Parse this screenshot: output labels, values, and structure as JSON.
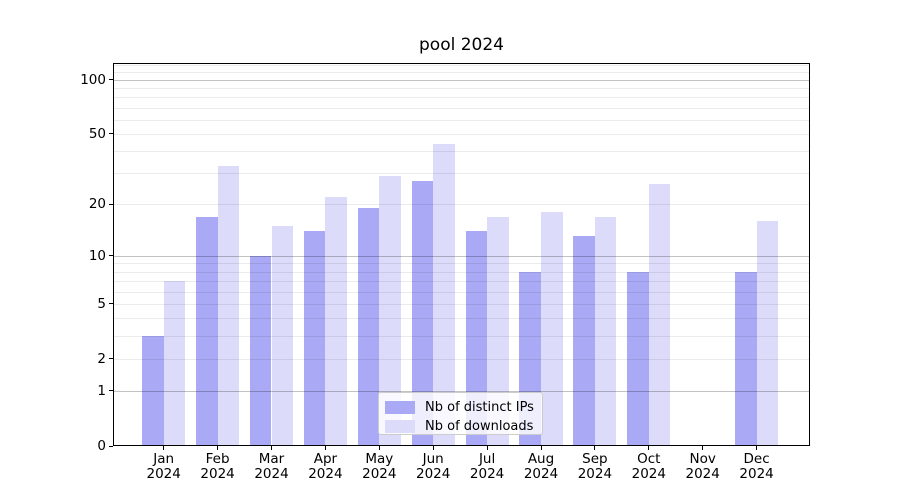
{
  "title": "pool 2024",
  "chart_data": {
    "type": "bar",
    "title": "pool 2024",
    "categories": [
      "Jan",
      "Feb",
      "Mar",
      "Apr",
      "May",
      "Jun",
      "Jul",
      "Aug",
      "Sep",
      "Oct",
      "Nov",
      "Dec"
    ],
    "category_year": "2024",
    "series": [
      {
        "name": "Nb of distinct IPs",
        "color": "#a9a9f5",
        "values": [
          3,
          17,
          10,
          14,
          19,
          27,
          14,
          8,
          13,
          8,
          0,
          8
        ]
      },
      {
        "name": "Nb of downloads",
        "color": "#dcdcfa",
        "values": [
          7,
          33,
          15,
          22,
          29,
          44,
          17,
          18,
          17,
          26,
          0,
          16
        ]
      }
    ],
    "y_scale": "log10(1+v)",
    "ylim": [
      0,
      124
    ],
    "y_ticks": [
      0,
      1,
      2,
      5,
      10,
      20,
      50,
      100
    ],
    "major_gridlines": [
      1,
      10,
      100
    ],
    "minor_gridlines": [
      2,
      3,
      4,
      5,
      6,
      7,
      8,
      9,
      20,
      30,
      40,
      50,
      60,
      70,
      80,
      90,
      110,
      120
    ],
    "grid": true,
    "legend_position": "lower center"
  },
  "legend": {
    "items": [
      "Nb of distinct IPs",
      "Nb of downloads"
    ]
  },
  "colors": {
    "ips_bar": "#a9a9f5",
    "downloads_bar": "#dcdcfa",
    "spine": "#000000",
    "text": "#000000",
    "major_grid": "rgba(0,0,0,0.24)",
    "minor_grid": "rgba(0,0,0,0.08)",
    "legend_border": "#cccccc",
    "legend_background": "rgba(255,255,255,0.8)"
  }
}
